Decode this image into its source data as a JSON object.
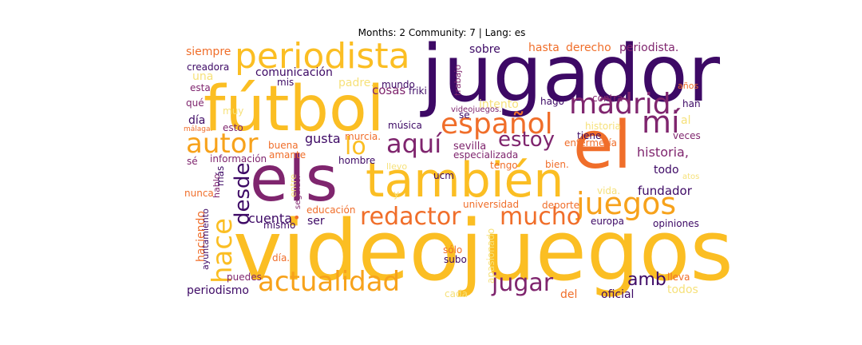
{
  "title": "Months: 2 Community: 7 | Lang: es",
  "palette": {
    "background": "#ffffff",
    "dark_purple": "#3d0965",
    "magenta": "#7f256e",
    "orange": "#f06e2a",
    "amber": "#fbbe23",
    "pale_yellow": "#f6e17a"
  },
  "words": [
    {
      "text": "videojuegos",
      "color": "#fbbe23"
    },
    {
      "text": "jugador",
      "color": "#3d0965"
    },
    {
      "text": "fútbol",
      "color": "#fbbe23"
    },
    {
      "text": "els",
      "color": "#7f256e"
    },
    {
      "text": "el",
      "color": "#f06e2a"
    },
    {
      "text": "también",
      "color": "#fbbe23"
    },
    {
      "text": "periodista",
      "color": "#fbbe23"
    },
    {
      "text": "madrid.",
      "color": "#7f256e"
    },
    {
      "text": "español",
      "color": "#f06e2a"
    },
    {
      "text": "mí",
      "color": "#7f256e"
    },
    {
      "text": "autor",
      "color": "#f7a21b"
    },
    {
      "text": "aquí",
      "color": "#7f256e"
    },
    {
      "text": "lo",
      "color": "#fbbe23"
    },
    {
      "text": "estoy",
      "color": "#7f256e"
    },
    {
      "text": "actualidad",
      "color": "#f7a21b"
    },
    {
      "text": "hace",
      "color": "#fbbe23"
    },
    {
      "text": "juegos",
      "color": "#f7a21b"
    },
    {
      "text": "redactor",
      "color": "#f06e2a"
    },
    {
      "text": "mucho",
      "color": "#f06e2a"
    },
    {
      "text": "desde",
      "color": "#3d0965"
    },
    {
      "text": "jugar",
      "color": "#7f256e"
    },
    {
      "text": "amb",
      "color": "#3d0965"
    },
    {
      "text": "periodista.",
      "color": "#7f256e"
    },
    {
      "text": "siempre",
      "color": "#f06e2a"
    },
    {
      "text": "hasta",
      "color": "#f06e2a"
    },
    {
      "text": "derecho",
      "color": "#f06e2a"
    },
    {
      "text": "sobre",
      "color": "#3d0965"
    },
    {
      "text": "comunicación",
      "color": "#3d0965"
    },
    {
      "text": "cosas",
      "color": "#7f256e"
    },
    {
      "text": "friki",
      "color": "#3d0965"
    },
    {
      "text": "creadora",
      "color": "#3d0965"
    },
    {
      "text": "una",
      "color": "#f6e17a"
    },
    {
      "text": "mis",
      "color": "#3d0965"
    },
    {
      "text": "mundo",
      "color": "#3d0965"
    },
    {
      "text": "padre.",
      "color": "#f6e17a"
    },
    {
      "text": "esta",
      "color": "#7f256e"
    },
    {
      "text": "trabajo",
      "color": "#7f256e"
    },
    {
      "text": "años",
      "color": "#f06e2a"
    },
    {
      "text": "qué",
      "color": "#7f256e"
    },
    {
      "text": "muy",
      "color": "#f6e17a"
    },
    {
      "text": "intento",
      "color": "#f6e17a"
    },
    {
      "text": "hago",
      "color": "#3d0965"
    },
    {
      "text": "contra",
      "color": "#7f256e"
    },
    {
      "text": "han",
      "color": "#3d0965"
    },
    {
      "text": "videojuegos.",
      "color": "#7f256e"
    },
    {
      "text": "día",
      "color": "#3d0965"
    },
    {
      "text": "málaga.",
      "color": "#f06e2a"
    },
    {
      "text": "esto",
      "color": "#7f256e"
    },
    {
      "text": "se",
      "color": "#3d0965"
    },
    {
      "text": "historia",
      "color": "#f6e17a"
    },
    {
      "text": "al",
      "color": "#f6e17a"
    },
    {
      "text": "murcia.",
      "color": "#f06e2a"
    },
    {
      "text": "tiene",
      "color": "#3d0965"
    },
    {
      "text": "veces",
      "color": "#7f256e"
    },
    {
      "text": "gusta",
      "color": "#3d0965"
    },
    {
      "text": "buena",
      "color": "#f06e2a"
    },
    {
      "text": "sevilla",
      "color": "#7f256e"
    },
    {
      "text": "enfermería",
      "color": "#f06e2a"
    },
    {
      "text": "historia,",
      "color": "#7f256e"
    },
    {
      "text": "sé",
      "color": "#7f256e"
    },
    {
      "text": "información",
      "color": "#7f256e"
    },
    {
      "text": "amante",
      "color": "#f06e2a"
    },
    {
      "text": "especializada",
      "color": "#7f256e"
    },
    {
      "text": "atos",
      "color": "#f6e17a"
    },
    {
      "text": "hombre",
      "color": "#3d0965"
    },
    {
      "text": "tengo",
      "color": "#f06e2a"
    },
    {
      "text": "bien.",
      "color": "#f06e2a"
    },
    {
      "text": "todo",
      "color": "#3d0965"
    },
    {
      "text": "hablo",
      "color": "#7f256e"
    },
    {
      "text": "más",
      "color": "#3d0965"
    },
    {
      "text": "entre",
      "color": "#f6e17a"
    },
    {
      "text": "seguidor",
      "color": "#7f256e"
    },
    {
      "text": "ucm",
      "color": "#3d0965"
    },
    {
      "text": "llevo",
      "color": "#f6e17a"
    },
    {
      "text": "nunca",
      "color": "#f06e2a"
    },
    {
      "text": "vida.",
      "color": "#f6e17a"
    },
    {
      "text": "fundador",
      "color": "#3d0965"
    },
    {
      "text": "cuenta",
      "color": "#3d0965"
    },
    {
      "text": "universidad",
      "color": "#f06e2a"
    },
    {
      "text": "deporte",
      "color": "#f06e2a"
    },
    {
      "text": "haciendo",
      "color": "#f06e2a"
    },
    {
      "text": "educación",
      "color": "#f06e2a"
    },
    {
      "text": "ser",
      "color": "#3d0965"
    },
    {
      "text": "mismo",
      "color": "#3d0965"
    },
    {
      "text": "europa",
      "color": "#3d0965"
    },
    {
      "text": "ayuntamiento",
      "color": "#3d0965"
    },
    {
      "text": "apasionado",
      "color": "#f6e17a"
    },
    {
      "text": "opiniones",
      "color": "#3d0965"
    },
    {
      "text": "sólo",
      "color": "#f06e2a"
    },
    {
      "text": "subo",
      "color": "#3d0965"
    },
    {
      "text": "día.",
      "color": "#f06e2a"
    },
    {
      "text": "puedes",
      "color": "#7f256e"
    },
    {
      "text": "lleva",
      "color": "#f06e2a"
    },
    {
      "text": "periodismo",
      "color": "#3d0965"
    },
    {
      "text": "cada",
      "color": "#f6e17a"
    },
    {
      "text": "del",
      "color": "#f06e2a"
    },
    {
      "text": "oficial",
      "color": "#3d0965"
    },
    {
      "text": "todos",
      "color": "#f6e17a"
    },
    {
      "text": "música",
      "color": "#3d0965"
    },
    {
      "text": "y",
      "color": "#f6e17a"
    },
    {
      "text": "•",
      "color": "#f06e2a"
    }
  ]
}
